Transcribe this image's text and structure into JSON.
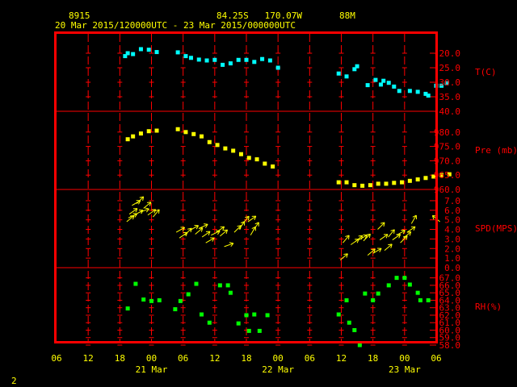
{
  "header": {
    "station": "8915",
    "location": "84.25S   170.07W",
    "elevation": "88M",
    "range": "20 Mar 2015/120000UTC - 23 Mar 2015/000000UTC"
  },
  "footer": {
    "page": "2"
  },
  "colors": {
    "background": "#000000",
    "frame": "#ff0000",
    "text": "#ffff00",
    "grid": "#ff0000",
    "temperature": "#00ffff",
    "pressure": "#ffff00",
    "wind": "#ffff00",
    "humidity": "#00ff00"
  },
  "chart_data": {
    "type": "scatter",
    "x_axis": {
      "unit": "hours since 20 Mar 2015 06 UTC",
      "ticks": [
        {
          "h": 0,
          "label": "06"
        },
        {
          "h": 6,
          "label": "12"
        },
        {
          "h": 12,
          "label": "18"
        },
        {
          "h": 18,
          "label": "00"
        },
        {
          "h": 24,
          "label": "06"
        },
        {
          "h": 30,
          "label": "12"
        },
        {
          "h": 36,
          "label": "18"
        },
        {
          "h": 42,
          "label": "00"
        },
        {
          "h": 48,
          "label": "06"
        },
        {
          "h": 54,
          "label": "12"
        },
        {
          "h": 60,
          "label": "18"
        },
        {
          "h": 66,
          "label": "00"
        },
        {
          "h": 72,
          "label": "06"
        }
      ],
      "days": [
        {
          "h": 18,
          "label": "21 Mar"
        },
        {
          "h": 42,
          "label": "22 Mar"
        },
        {
          "h": 66,
          "label": "23 Mar"
        }
      ]
    },
    "panels": [
      {
        "name": "T(C)",
        "ymin": -40,
        "ymax": -15,
        "ticks": [
          -40,
          -35,
          -30,
          -25,
          -20
        ],
        "tick_labels": [
          "-40.0",
          "-35.0",
          "-30.0",
          "-25.0",
          "-20.0"
        ],
        "marker": "square",
        "points": [
          [
            13.0,
            -21
          ],
          [
            13.5,
            -20
          ],
          [
            14.5,
            -20.3
          ],
          [
            16.0,
            -18.6
          ],
          [
            17.5,
            -18.8
          ],
          [
            19.0,
            -19.6
          ],
          [
            23.0,
            -19.7
          ],
          [
            24.5,
            -21
          ],
          [
            25.5,
            -21.6
          ],
          [
            27.0,
            -22.2
          ],
          [
            28.5,
            -22.5
          ],
          [
            30.0,
            -22.3
          ],
          [
            31.5,
            -24
          ],
          [
            33.0,
            -23.5
          ],
          [
            34.5,
            -22.3
          ],
          [
            36.0,
            -22.3
          ],
          [
            37.5,
            -23
          ],
          [
            39.0,
            -22
          ],
          [
            40.5,
            -22.5
          ],
          [
            42.0,
            -25
          ],
          [
            53.5,
            -27
          ],
          [
            55.0,
            -28
          ],
          [
            56.5,
            -25.5
          ],
          [
            57.0,
            -24.5
          ],
          [
            59.0,
            -31
          ],
          [
            60.5,
            -29.2
          ],
          [
            61.5,
            -30.8
          ],
          [
            62.0,
            -29.5
          ],
          [
            63.0,
            -30.2
          ],
          [
            64.0,
            -31.5
          ],
          [
            65.0,
            -33
          ],
          [
            67.0,
            -33
          ],
          [
            68.5,
            -33.3
          ],
          [
            70.0,
            -34
          ],
          [
            70.5,
            -34.6
          ],
          [
            72.0,
            -31.2
          ],
          [
            73.0,
            -31.2
          ],
          [
            74.0,
            -30.3
          ]
        ]
      },
      {
        "name": "Pre (mb)",
        "ymin": 960,
        "ymax": 985,
        "ticks": [
          960,
          965,
          970,
          975,
          980
        ],
        "tick_labels": [
          "960.0",
          "965.0",
          "970.0",
          "975.0",
          "980.0"
        ],
        "marker": "square",
        "points": [
          [
            13.5,
            977.5
          ],
          [
            14.5,
            978.5
          ],
          [
            16.0,
            979.5
          ],
          [
            17.5,
            980.3
          ],
          [
            19.0,
            980.5
          ],
          [
            23.0,
            981.0
          ],
          [
            24.5,
            980.0
          ],
          [
            26.0,
            979.3
          ],
          [
            27.5,
            978.5
          ],
          [
            29.0,
            976.5
          ],
          [
            30.5,
            975.5
          ],
          [
            32.0,
            974.3
          ],
          [
            33.5,
            973.5
          ],
          [
            35.0,
            972.3
          ],
          [
            36.5,
            971.0
          ],
          [
            38.0,
            970.5
          ],
          [
            39.5,
            969.0
          ],
          [
            41.0,
            968.0
          ],
          [
            53.5,
            962.5
          ],
          [
            55.0,
            962.5
          ],
          [
            56.5,
            961.5
          ],
          [
            58.0,
            961.3
          ],
          [
            59.5,
            961.5
          ],
          [
            61.0,
            962.0
          ],
          [
            62.5,
            962.0
          ],
          [
            64.0,
            962.3
          ],
          [
            65.5,
            962.5
          ],
          [
            67.0,
            963.0
          ],
          [
            68.5,
            963.5
          ],
          [
            70.0,
            964.0
          ],
          [
            71.5,
            964.5
          ],
          [
            73.0,
            965.0
          ],
          [
            74.5,
            965.3
          ]
        ]
      },
      {
        "name": "SPD(MPS)",
        "ymin": 0,
        "ymax": 7.5,
        "ticks": [
          0,
          1,
          2,
          3,
          4,
          5,
          6,
          7
        ],
        "tick_labels": [
          "0.0",
          "1.0",
          "2.0",
          "3.0",
          "4.0",
          "5.0",
          "6.0",
          "7.0"
        ],
        "marker": "arrow",
        "points": [
          [
            13.3,
            4.8,
            40
          ],
          [
            13.8,
            5.6,
            35
          ],
          [
            14.3,
            6.5,
            30
          ],
          [
            15.2,
            6.7,
            45
          ],
          [
            15.8,
            5.8,
            20
          ],
          [
            16.5,
            6.2,
            40
          ],
          [
            17.3,
            5.5,
            35
          ],
          [
            18.3,
            5.3,
            50
          ],
          [
            13.6,
            5.2,
            25
          ],
          [
            14.8,
            5.5,
            30
          ],
          [
            22.7,
            3.7,
            30
          ],
          [
            23.3,
            3.1,
            35
          ],
          [
            24.3,
            3.4,
            45
          ],
          [
            25.3,
            3.9,
            30
          ],
          [
            26.3,
            3.5,
            40
          ],
          [
            27.0,
            4.1,
            25
          ],
          [
            27.6,
            3.2,
            35
          ],
          [
            28.3,
            2.6,
            30
          ],
          [
            29.3,
            3.4,
            25
          ],
          [
            30.3,
            3.7,
            35
          ],
          [
            31.0,
            3.3,
            40
          ],
          [
            31.8,
            2.2,
            20
          ],
          [
            33.7,
            3.7,
            45
          ],
          [
            34.6,
            4.0,
            55
          ],
          [
            35.3,
            4.6,
            50
          ],
          [
            36.3,
            4.8,
            35
          ],
          [
            36.8,
            3.4,
            60
          ],
          [
            37.3,
            3.9,
            55
          ],
          [
            53.8,
            0.8,
            40
          ],
          [
            54.3,
            2.6,
            50
          ],
          [
            55.8,
            2.4,
            35
          ],
          [
            56.6,
            2.7,
            40
          ],
          [
            57.3,
            2.9,
            30
          ],
          [
            58.2,
            2.8,
            45
          ],
          [
            59.0,
            1.3,
            40
          ],
          [
            60.0,
            1.5,
            30
          ],
          [
            60.9,
            4.0,
            45
          ],
          [
            61.3,
            2.9,
            35
          ],
          [
            62.2,
            1.8,
            40
          ],
          [
            62.9,
            3.2,
            50
          ],
          [
            63.7,
            2.9,
            35
          ],
          [
            64.5,
            3.4,
            30
          ],
          [
            65.2,
            2.6,
            45
          ],
          [
            65.8,
            3.1,
            40
          ],
          [
            66.5,
            3.7,
            35
          ],
          [
            67.3,
            4.6,
            60
          ],
          [
            72.7,
            4.8,
            140
          ]
        ]
      },
      {
        "name": "RH(%)",
        "ymin": 58,
        "ymax": 67.5,
        "ticks": [
          58,
          59,
          60,
          61,
          62,
          63,
          64,
          65,
          66,
          67
        ],
        "tick_labels": [
          "58.0",
          "59.0",
          "60.0",
          "61.0",
          "62.0",
          "63.0",
          "64.0",
          "65.0",
          "66.0",
          "67.0"
        ],
        "marker": "square",
        "points": [
          [
            13.5,
            62.9
          ],
          [
            15.0,
            66.2
          ],
          [
            16.5,
            64.1
          ],
          [
            18.0,
            63.9
          ],
          [
            19.5,
            64.0
          ],
          [
            22.5,
            62.8
          ],
          [
            23.5,
            63.9
          ],
          [
            25.0,
            64.8
          ],
          [
            26.5,
            66.2
          ],
          [
            27.5,
            62.1
          ],
          [
            29.0,
            61.0
          ],
          [
            31.0,
            66.0
          ],
          [
            32.5,
            66.0
          ],
          [
            33.0,
            65.0
          ],
          [
            34.5,
            60.9
          ],
          [
            36.0,
            62.0
          ],
          [
            36.5,
            59.9
          ],
          [
            37.5,
            62.1
          ],
          [
            38.5,
            59.9
          ],
          [
            40.0,
            62.0
          ],
          [
            53.5,
            62.1
          ],
          [
            55.0,
            64.0
          ],
          [
            55.5,
            61.0
          ],
          [
            56.5,
            60.0
          ],
          [
            57.5,
            58.0
          ],
          [
            58.5,
            64.9
          ],
          [
            60.0,
            64.0
          ],
          [
            61.0,
            64.9
          ],
          [
            63.0,
            66.0
          ],
          [
            64.5,
            67.0
          ],
          [
            66.0,
            67.0
          ],
          [
            67.0,
            66.1
          ],
          [
            68.5,
            65.0
          ],
          [
            69.0,
            64.0
          ],
          [
            70.5,
            64.0
          ]
        ]
      }
    ]
  }
}
